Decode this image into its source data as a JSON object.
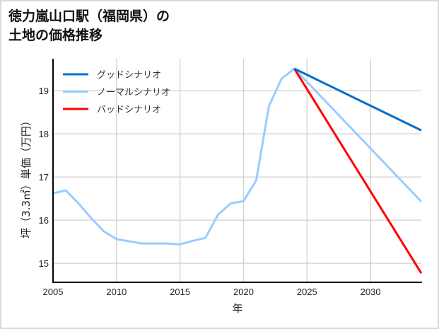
{
  "chart_data": {
    "type": "line",
    "title_line1": "徳力嵐山口駅（福岡県）の",
    "title_line2": "土地の価格推移",
    "xlabel": "年",
    "ylabel": "坪（3.3㎡）単価（万円）",
    "xlim": [
      2005,
      2034
    ],
    "ylim": [
      14.56,
      19.74
    ],
    "xticks": [
      "2005",
      "2010",
      "2015",
      "2020",
      "2025",
      "2030"
    ],
    "yticks": [
      "15",
      "16",
      "17",
      "18",
      "19"
    ],
    "grid": true,
    "legend_position": "top-left",
    "series": [
      {
        "name": "グッドシナリオ",
        "color": "#0070cc",
        "x": [
          2024,
          2034
        ],
        "y": [
          19.51,
          18.08
        ]
      },
      {
        "name": "ノーマルシナリオ",
        "color": "#99ccff",
        "x": [
          2005,
          2006,
          2007,
          2008,
          2009,
          2010,
          2011,
          2012,
          2013,
          2014,
          2015,
          2016,
          2017,
          2018,
          2019,
          2020,
          2021,
          2022,
          2023,
          2024,
          2034
        ],
        "y": [
          16.62,
          16.69,
          16.39,
          16.05,
          15.74,
          15.56,
          15.51,
          15.46,
          15.46,
          15.46,
          15.44,
          15.52,
          15.59,
          16.13,
          16.39,
          16.44,
          16.92,
          18.64,
          19.28,
          19.51,
          16.43
        ]
      },
      {
        "name": "バッドシナリオ",
        "color": "#ff0000",
        "x": [
          2024,
          2034
        ],
        "y": [
          19.51,
          14.77
        ]
      }
    ]
  }
}
